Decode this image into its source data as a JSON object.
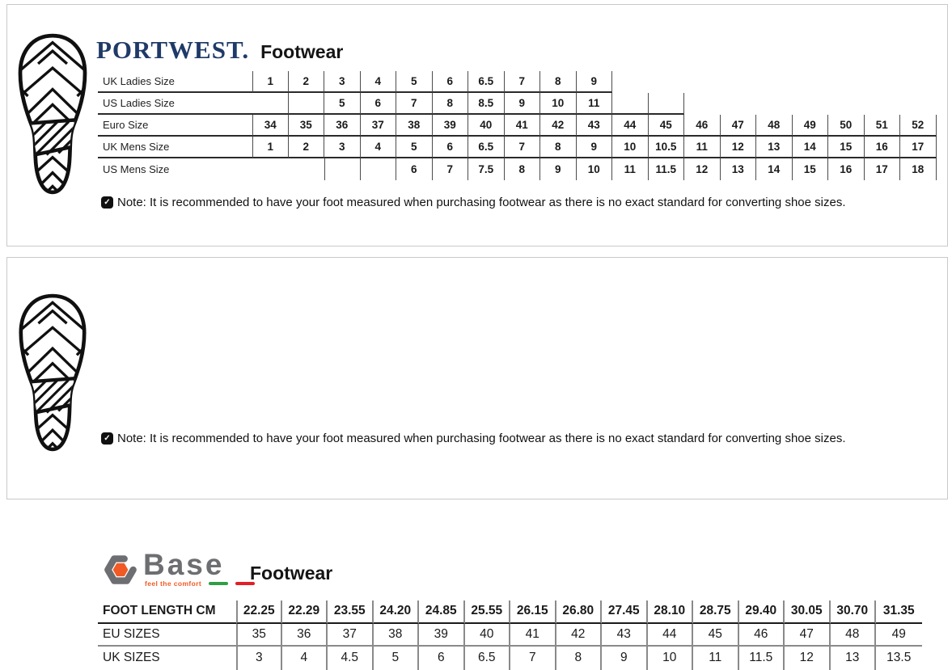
{
  "portwest": {
    "brand": "PORTWEST.",
    "title": "Footwear",
    "table": {
      "rows": [
        {
          "label": "UK Ladies Size",
          "values": [
            "1",
            "2",
            "3",
            "4",
            "5",
            "6",
            "6.5",
            "7",
            "8",
            "9",
            "",
            "",
            "",
            "",
            "",
            "",
            "",
            "",
            ""
          ]
        },
        {
          "label": "US Ladies Size",
          "values": [
            "",
            "",
            "5",
            "6",
            "7",
            "8",
            "8.5",
            "9",
            "10",
            "11",
            "",
            "",
            "",
            "",
            "",
            "",
            "",
            "",
            ""
          ]
        },
        {
          "label": "Euro Size",
          "values": [
            "34",
            "35",
            "36",
            "37",
            "38",
            "39",
            "40",
            "41",
            "42",
            "43",
            "44",
            "45",
            "46",
            "47",
            "48",
            "49",
            "50",
            "51",
            "52"
          ]
        },
        {
          "label": "UK Mens Size",
          "values": [
            "1",
            "2",
            "3",
            "4",
            "5",
            "6",
            "6.5",
            "7",
            "8",
            "9",
            "10",
            "10.5",
            "11",
            "12",
            "13",
            "14",
            "15",
            "16",
            "17"
          ]
        },
        {
          "label": "US Mens Size",
          "values": [
            "",
            "",
            "",
            "",
            "6",
            "7",
            "7.5",
            "8",
            "9",
            "10",
            "11",
            "11.5",
            "12",
            "13",
            "14",
            "15",
            "16",
            "17",
            "18"
          ]
        }
      ]
    },
    "note": "Note: It is recommended to have your foot measured when purchasing footwear as there is no exact standard for converting shoe sizes."
  },
  "base": {
    "brand": "Base",
    "tagline": "feel the comfort",
    "title": "Footwear",
    "table": {
      "rows": [
        {
          "label": "FOOT LENGTH CM",
          "values": [
            "22.25",
            "22.29",
            "23.55",
            "24.20",
            "24.85",
            "25.55",
            "26.15",
            "26.80",
            "27.45",
            "28.10",
            "28.75",
            "29.40",
            "30.05",
            "30.70",
            "31.35"
          ]
        },
        {
          "label": "EU SIZES",
          "values": [
            "35",
            "36",
            "37",
            "38",
            "39",
            "40",
            "41",
            "42",
            "43",
            "44",
            "45",
            "46",
            "47",
            "48",
            "49"
          ]
        },
        {
          "label": "UK SIZES",
          "values": [
            "3",
            "4",
            "4.5",
            "5",
            "6",
            "6.5",
            "7",
            "8",
            "9",
            "10",
            "11",
            "11.5",
            "12",
            "13",
            "13.5"
          ]
        }
      ]
    },
    "note": "Note: It is recommended to have your foot measured when purchasing footwear as there is no exact standard for converting shoe sizes."
  },
  "icons": {
    "note_check": "✓"
  },
  "colors": {
    "portwest_navy": "#1f3a68",
    "base_gray": "#6d6e71",
    "base_orange": "#f15a24",
    "base_green": "#2f9e45",
    "base_red": "#e31e25",
    "panel_border": "#c9c9c9"
  }
}
